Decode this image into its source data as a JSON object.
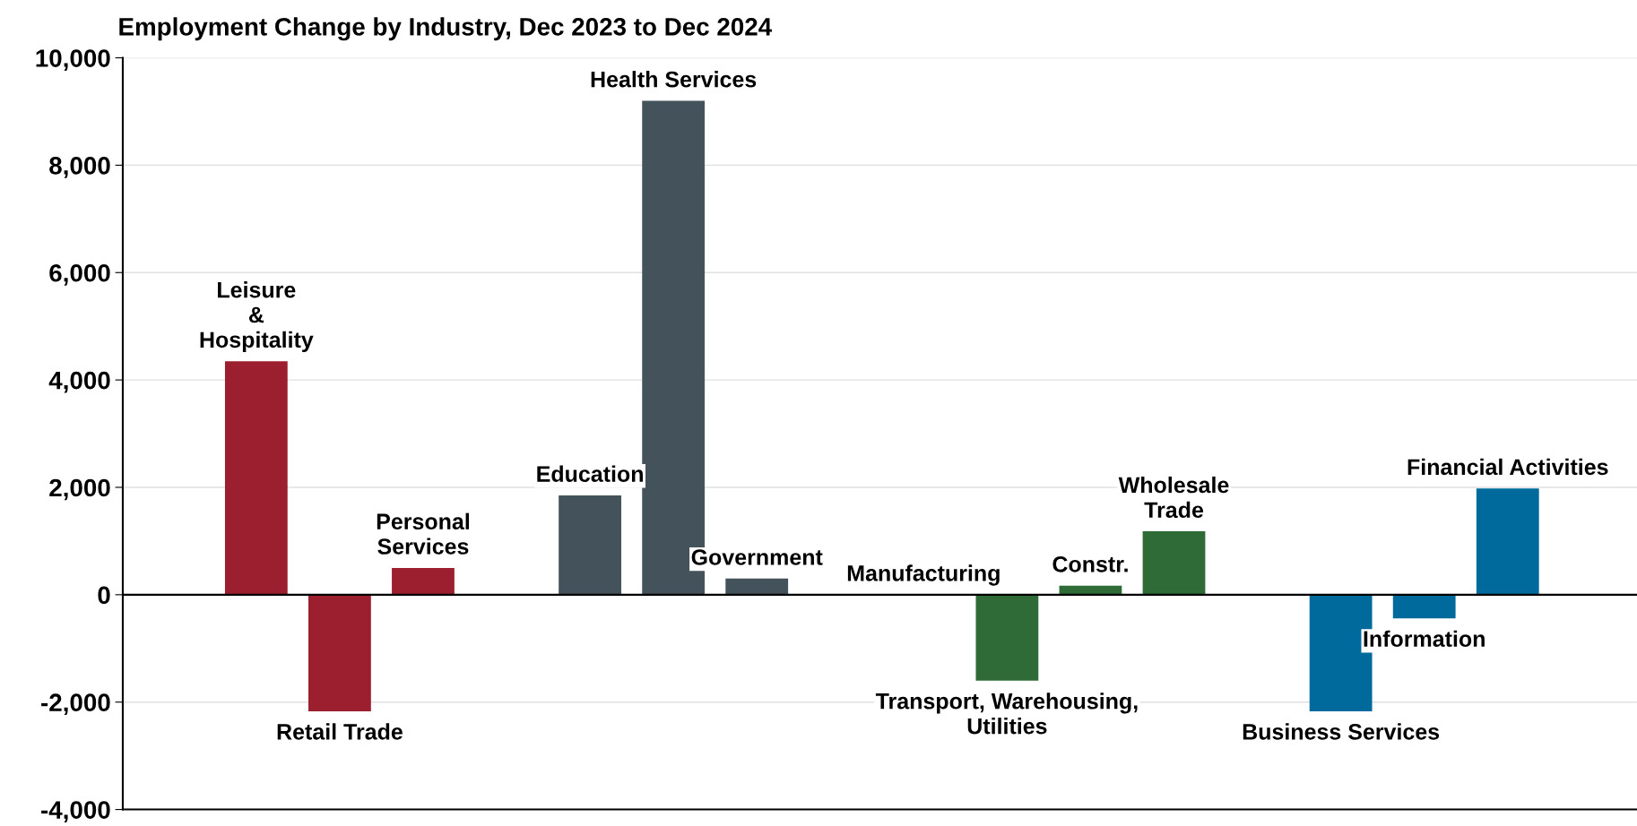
{
  "chart_data": {
    "type": "bar",
    "title": "Employment Change by Industry, Dec 2023 to Dec 2024",
    "categories": [
      "Leisure\n&\nHospitality",
      "Retail Trade",
      "Personal\nServices",
      null,
      "Education",
      "Health Services",
      "Government",
      null,
      "Manufacturing",
      "Transport, Warehousing,\nUtilities",
      "Constr.",
      "Wholesale\nTrade",
      null,
      "Business Services",
      "Information",
      "Financial Activities"
    ],
    "values": [
      4350,
      -2170,
      500,
      null,
      1850,
      9200,
      300,
      null,
      0,
      -1600,
      170,
      1180,
      null,
      -2170,
      -440,
      1980
    ],
    "colors": [
      "#9b1f2e",
      "#9b1f2e",
      "#9b1f2e",
      null,
      "#44525c",
      "#44525c",
      "#44525c",
      null,
      "#2e6b37",
      "#2e6b37",
      "#2e6b37",
      "#2e6b37",
      null,
      "#006a9c",
      "#006a9c",
      "#006a9c"
    ],
    "ylim": [
      -4000,
      10000
    ],
    "yticks": [
      {
        "value": -4000,
        "label": "-4,000"
      },
      {
        "value": -2000,
        "label": "-2,000"
      },
      0,
      {
        "value": 2000,
        "label": "2,000"
      },
      {
        "value": 4000,
        "label": "4,000"
      },
      {
        "value": 6000,
        "label": "6,000"
      },
      {
        "value": 8000,
        "label": "8,000"
      },
      {
        "value": 10000,
        "label": "10,000"
      }
    ],
    "ref_lines": [
      {
        "axis": "y",
        "value": 0,
        "color": "#000000"
      }
    ],
    "grid": "y",
    "legend": false
  }
}
